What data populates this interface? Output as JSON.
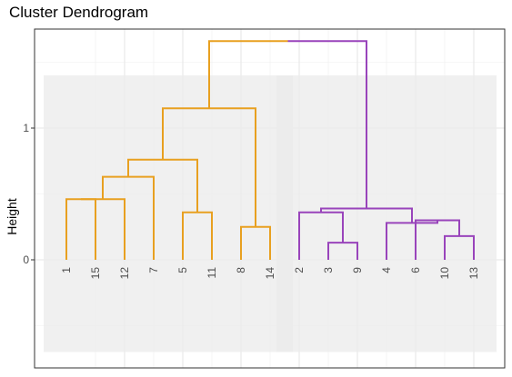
{
  "chart_data": {
    "type": "dendrogram",
    "title": "Cluster Dendrogram",
    "ylabel": "Height",
    "xlabel": "",
    "ylim": [
      -0.7,
      1.78
    ],
    "yticks": [
      0,
      1
    ],
    "grid": true,
    "leaf_order": [
      "1",
      "15",
      "12",
      "7",
      "5",
      "11",
      "8",
      "14",
      "2",
      "3",
      "9",
      "4",
      "6",
      "10",
      "13"
    ],
    "merges": [
      {
        "id": "m1",
        "left": "1",
        "right": "15",
        "height": 0.46
      },
      {
        "id": "m2",
        "left": "m1",
        "right": "12",
        "height": 0.46
      },
      {
        "id": "m3",
        "left": "m2",
        "right": "7",
        "height": 0.63
      },
      {
        "id": "m4",
        "left": "5",
        "right": "11",
        "height": 0.36
      },
      {
        "id": "m5",
        "left": "m3",
        "right": "m4",
        "height": 0.76
      },
      {
        "id": "m6",
        "left": "8",
        "right": "14",
        "height": 0.25
      },
      {
        "id": "m7",
        "left": "m5",
        "right": "m6",
        "height": 1.15
      },
      {
        "id": "m8",
        "left": "3",
        "right": "9",
        "height": 0.13
      },
      {
        "id": "m9",
        "left": "2",
        "right": "m8",
        "height": 0.36
      },
      {
        "id": "m10",
        "left": "10",
        "right": "13",
        "height": 0.18
      },
      {
        "id": "m11",
        "left": "6",
        "right": "m10",
        "height": 0.3
      },
      {
        "id": "m12",
        "left": "4",
        "right": "m11",
        "height": 0.28
      },
      {
        "id": "m13",
        "left": "m9",
        "right": "m12",
        "height": 0.39
      },
      {
        "id": "m14",
        "left": "m7",
        "right": "m13",
        "height": 1.66
      }
    ],
    "clusters": [
      {
        "leaves": [
          "1",
          "15",
          "12",
          "7",
          "5",
          "11",
          "8",
          "14"
        ],
        "color": "#E8A020"
      },
      {
        "leaves": [
          "2",
          "3",
          "9",
          "4",
          "6",
          "10",
          "13"
        ],
        "color": "#9944BB"
      }
    ],
    "cluster_box_color": "#EBEBEB"
  }
}
